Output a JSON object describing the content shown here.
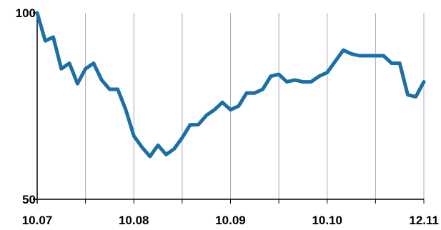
{
  "chart_data": {
    "type": "line",
    "title": "",
    "xlabel": "",
    "ylabel": "",
    "ylim": [
      50,
      100
    ],
    "y_ticks": [
      {
        "value": 100,
        "label": "100"
      },
      {
        "value": 50,
        "label": "50"
      }
    ],
    "x_tick_labels": [
      {
        "index": 0,
        "label": "10.07"
      },
      {
        "index": 12,
        "label": "10.08"
      },
      {
        "index": 24,
        "label": "10.09"
      },
      {
        "index": 36,
        "label": "10.10"
      },
      {
        "index": 48,
        "label": "12.11"
      }
    ],
    "x_gridlines_at": [
      6,
      12,
      18,
      24,
      30,
      36,
      42,
      48
    ],
    "grid": "vertical",
    "legend": "none",
    "series": [
      {
        "values": [
          100,
          92.5,
          93.5,
          85,
          86.5,
          81,
          85,
          86.5,
          82,
          79.5,
          79.5,
          74,
          67,
          64,
          61.5,
          64.5,
          62,
          63.5,
          66.5,
          70,
          70,
          72.5,
          74,
          76,
          74,
          75,
          78.5,
          78.5,
          79.5,
          83,
          83.5,
          81.5,
          82,
          81.5,
          81.5,
          83,
          84,
          87,
          90,
          89,
          88.5,
          88.5,
          88.5,
          88.5,
          86.5,
          86.5,
          78,
          77.5,
          81.5
        ],
        "color": "#1a6fa8"
      }
    ]
  },
  "colors": {
    "line": "#1a6fa8",
    "grid": "#a8a8c0",
    "axis": "#000000"
  }
}
